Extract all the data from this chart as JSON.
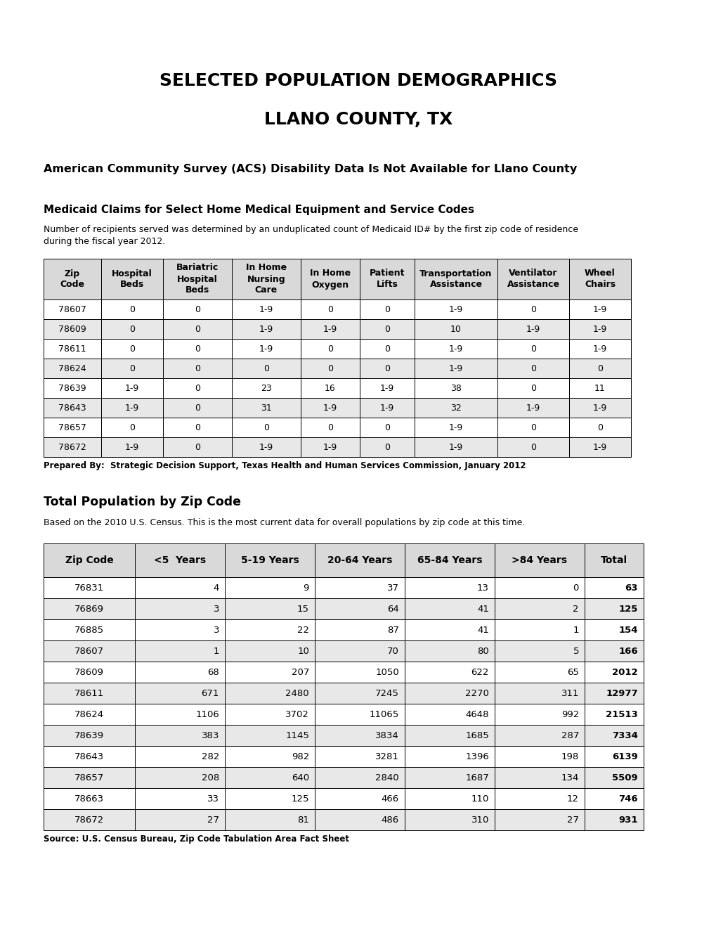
{
  "title1": "SELECTED POPULATION DEMOGRAPHICS",
  "title2": "LLANO COUNTY, TX",
  "acs_notice": "American Community Survey (ACS) Disability Data Is Not Available for Llano County",
  "medicaid_title": "Medicaid Claims for Select Home Medical Equipment and Service Codes",
  "medicaid_desc": "Number of recipients served was determined by an unduplicated count of Medicaid ID# by the first zip code of residence\nduring the fiscal year 2012.",
  "medicaid_prepared": "Prepared By:  Strategic Decision Support, Texas Health and Human Services Commission, January 2012",
  "medicaid_headers": [
    "Zip\nCode",
    "Hospital\nBeds",
    "Bariatric\nHospital\nBeds",
    "In Home\nNursing\nCare",
    "In Home\nOxygen",
    "Patient\nLifts",
    "Transportation\nAssistance",
    "Ventilator\nAssistance",
    "Wheel\nChairs"
  ],
  "medicaid_data": [
    [
      "78607",
      "0",
      "0",
      "1-9",
      "0",
      "0",
      "1-9",
      "0",
      "1-9"
    ],
    [
      "78609",
      "0",
      "0",
      "1-9",
      "1-9",
      "0",
      "10",
      "1-9",
      "1-9"
    ],
    [
      "78611",
      "0",
      "0",
      "1-9",
      "0",
      "0",
      "1-9",
      "0",
      "1-9"
    ],
    [
      "78624",
      "0",
      "0",
      "0",
      "0",
      "0",
      "1-9",
      "0",
      "0"
    ],
    [
      "78639",
      "1-9",
      "0",
      "23",
      "16",
      "1-9",
      "38",
      "0",
      "11"
    ],
    [
      "78643",
      "1-9",
      "0",
      "31",
      "1-9",
      "1-9",
      "32",
      "1-9",
      "1-9"
    ],
    [
      "78657",
      "0",
      "0",
      "0",
      "0",
      "0",
      "1-9",
      "0",
      "0"
    ],
    [
      "78672",
      "1-9",
      "0",
      "1-9",
      "1-9",
      "0",
      "1-9",
      "0",
      "1-9"
    ]
  ],
  "pop_title": "Total Population by Zip Code",
  "pop_desc": "Based on the 2010 U.S. Census. This is the most current data for overall populations by zip code at this time.",
  "pop_source": "Source: U.S. Census Bureau, Zip Code Tabulation Area Fact Sheet",
  "pop_headers": [
    "Zip Code",
    "<5  Years",
    "5-19 Years",
    "20-64 Years",
    "65-84 Years",
    ">84 Years",
    "Total"
  ],
  "pop_data": [
    [
      "76831",
      "4",
      "9",
      "37",
      "13",
      "0",
      "63"
    ],
    [
      "76869",
      "3",
      "15",
      "64",
      "41",
      "2",
      "125"
    ],
    [
      "76885",
      "3",
      "22",
      "87",
      "41",
      "1",
      "154"
    ],
    [
      "78607",
      "1",
      "10",
      "70",
      "80",
      "5",
      "166"
    ],
    [
      "78609",
      "68",
      "207",
      "1050",
      "622",
      "65",
      "2012"
    ],
    [
      "78611",
      "671",
      "2480",
      "7245",
      "2270",
      "311",
      "12977"
    ],
    [
      "78624",
      "1106",
      "3702",
      "11065",
      "4648",
      "992",
      "21513"
    ],
    [
      "78639",
      "383",
      "1145",
      "3834",
      "1685",
      "287",
      "7334"
    ],
    [
      "78643",
      "282",
      "982",
      "3281",
      "1396",
      "198",
      "6139"
    ],
    [
      "78657",
      "208",
      "640",
      "2840",
      "1687",
      "134",
      "5509"
    ],
    [
      "78663",
      "33",
      "125",
      "466",
      "110",
      "12",
      "746"
    ],
    [
      "78672",
      "27",
      "81",
      "486",
      "310",
      "27",
      "931"
    ]
  ],
  "bg_color": "#ffffff",
  "header_bg": "#d9d9d9",
  "row_alt_bg": "#e8e8e8",
  "row_white_bg": "#ffffff",
  "border_color": "#000000"
}
